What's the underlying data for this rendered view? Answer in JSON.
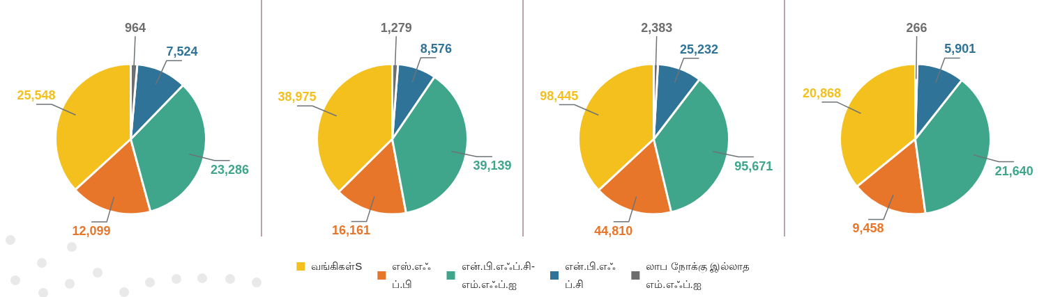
{
  "chart_data": [
    {
      "type": "pie",
      "categories": [
        "வங்கிகள்S",
        "எஸ்.எஃ\nப்.பி",
        "என்.பி.எஃப்.சி-\nஎம்.எஃப்.ஐ",
        "என்.பி.எஃ\nப்.சி",
        "லாப நோக்கு இல்லாத\nஎம்.எஃப்.ஐ"
      ],
      "values": [
        25548,
        12099,
        23286,
        7524,
        964
      ],
      "value_labels": [
        "25,548",
        "12,099",
        "23,286",
        "7,524",
        "964"
      ],
      "colors": [
        "#f4c01e",
        "#e8762a",
        "#3fa68c",
        "#2f7399",
        "#6e6e6e"
      ],
      "legend": "bottom"
    },
    {
      "type": "pie",
      "categories": [
        null,
        null,
        null,
        null,
        null
      ],
      "values": [
        38975,
        16161,
        39139,
        8576,
        1279
      ],
      "value_labels": [
        "38,975",
        "16,161",
        "39,139",
        "8,576",
        "1,279"
      ],
      "colors": [
        "#f4c01e",
        "#e8762a",
        "#3fa68c",
        "#2f7399",
        "#6e6e6e"
      ]
    },
    {
      "type": "pie",
      "categories": [
        null,
        null,
        null,
        null,
        null
      ],
      "values": [
        98445,
        44810,
        95671,
        25232,
        2383
      ],
      "value_labels": [
        "98,445",
        "44,810",
        "95,671",
        "25,232",
        "2,383"
      ],
      "colors": [
        "#f4c01e",
        "#e8762a",
        "#3fa68c",
        "#2f7399",
        "#6e6e6e"
      ]
    },
    {
      "type": "pie",
      "categories": [
        null,
        null,
        null,
        null,
        null
      ],
      "values": [
        20868,
        9458,
        21640,
        5901,
        266
      ],
      "value_labels": [
        "20,868",
        "9,458",
        "21,640",
        "5,901",
        "266"
      ],
      "colors": [
        "#f4c01e",
        "#e8762a",
        "#3fa68c",
        "#2f7399",
        "#6e6e6e"
      ]
    }
  ]
}
